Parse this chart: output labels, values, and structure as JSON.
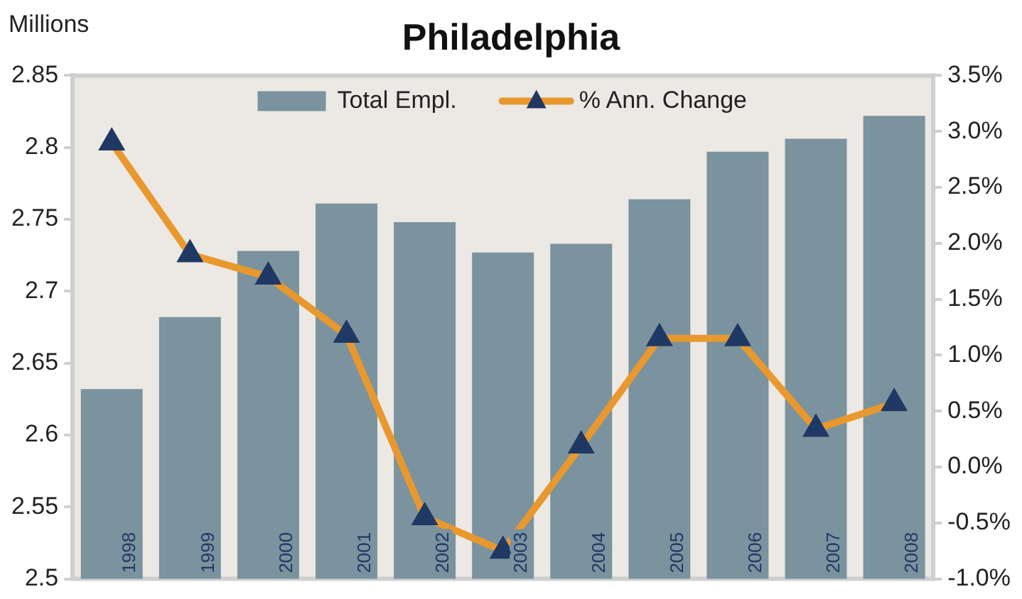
{
  "chart_data": {
    "type": "bar",
    "title": "Philadelphia",
    "ylabel": "Millions",
    "categories": [
      "1998",
      "1999",
      "2000",
      "2001",
      "2002",
      "2003",
      "2004",
      "2005",
      "2006",
      "2007",
      "2008"
    ],
    "series": [
      {
        "name": "Total Empl.",
        "color": "#7a939e",
        "values": [
          2.632,
          2.682,
          2.728,
          2.761,
          2.748,
          2.727,
          2.733,
          2.764,
          2.797,
          2.806,
          2.822
        ]
      },
      {
        "name": "% Ann. Change",
        "type": "line",
        "axis": "y2",
        "color": "#e8982e",
        "marker": "triangle",
        "values": [
          2.9,
          1.9,
          1.7,
          1.18,
          -0.45,
          -0.75,
          0.19,
          1.15,
          1.15,
          0.34,
          0.57
        ]
      }
    ],
    "ylim": [
      2.5,
      2.85
    ],
    "yticks": [
      2.5,
      2.55,
      2.6,
      2.65,
      2.7,
      2.75,
      2.8,
      2.85
    ],
    "y2lim": [
      -1.0,
      3.5
    ],
    "y2ticks": [
      {
        "value": -1.0,
        "label": "-1.0%"
      },
      {
        "value": -0.5,
        "label": "-0.5%"
      },
      {
        "value": 0,
        "label": "0.0%"
      },
      {
        "value": 0.5,
        "label": "0.5%"
      },
      {
        "value": 1.0,
        "label": "1.0%"
      },
      {
        "value": 1.5,
        "label": "1.5%"
      },
      {
        "value": 2.0,
        "label": "2.0%"
      },
      {
        "value": 2.5,
        "label": "2.5%"
      },
      {
        "value": 3.0,
        "label": "3.0%"
      },
      {
        "value": 3.5,
        "label": "3.5%"
      }
    ],
    "grid": false,
    "legend": "top"
  }
}
